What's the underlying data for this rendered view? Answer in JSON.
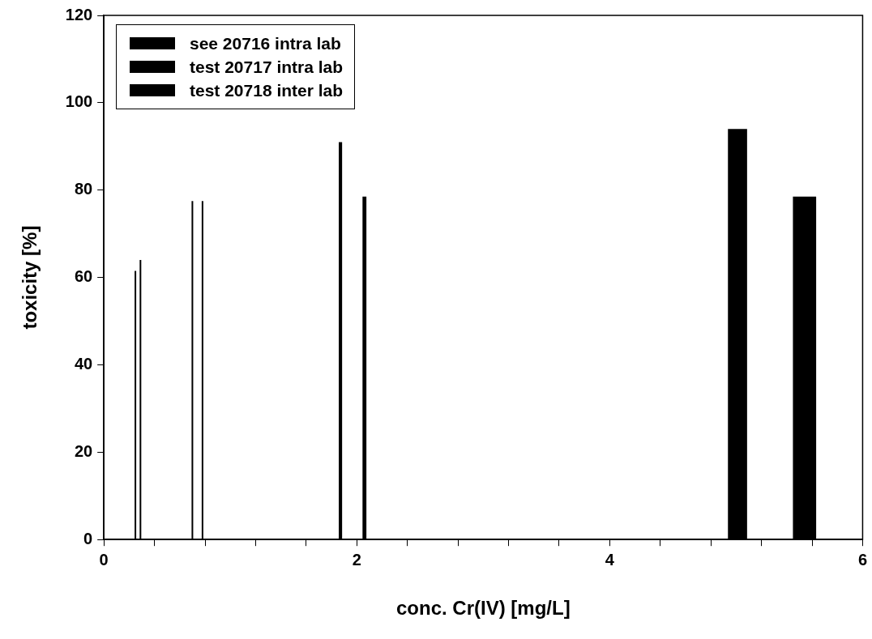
{
  "chart_data": {
    "type": "bar",
    "xlabel": "conc. Cr(IV) [mg/L]",
    "ylabel": "toxicity [%]",
    "series": [
      {
        "name": "see 20716 intra lab",
        "color": "#000000",
        "x": [
          0.26,
          0.3
        ],
        "values": [
          61.5,
          64
        ]
      },
      {
        "name": "test 20717 intra lab",
        "color": "#000000",
        "x": [
          0.7,
          0.78
        ],
        "values": [
          77.5,
          77.5
        ]
      },
      {
        "name": "test 20718 inter lab",
        "color": "#000000",
        "x": [
          1.86,
          2.05,
          5.0,
          5.53
        ],
        "values": [
          91,
          78.5,
          94,
          78.5
        ]
      }
    ],
    "xlim": [
      0,
      6
    ],
    "xticks": [
      0,
      {
        "value": 0.4,
        "label": null
      },
      {
        "value": 0.8,
        "label": null
      },
      {
        "value": 1.2,
        "label": null
      },
      {
        "value": 1.6,
        "label": null
      },
      2,
      {
        "value": 2.4,
        "label": null
      },
      {
        "value": 2.8,
        "label": null
      },
      {
        "value": 3.2,
        "label": null
      },
      {
        "value": 3.6,
        "label": null
      },
      4,
      {
        "value": 4.4,
        "label": null
      },
      {
        "value": 4.8,
        "label": null
      },
      {
        "value": 5.2,
        "label": null
      },
      {
        "value": 5.6,
        "label": null
      },
      6
    ],
    "ylim": [
      0,
      120
    ],
    "yticks": [
      0,
      20,
      40,
      60,
      80,
      100,
      120
    ],
    "grid": false,
    "legend": "top left"
  }
}
